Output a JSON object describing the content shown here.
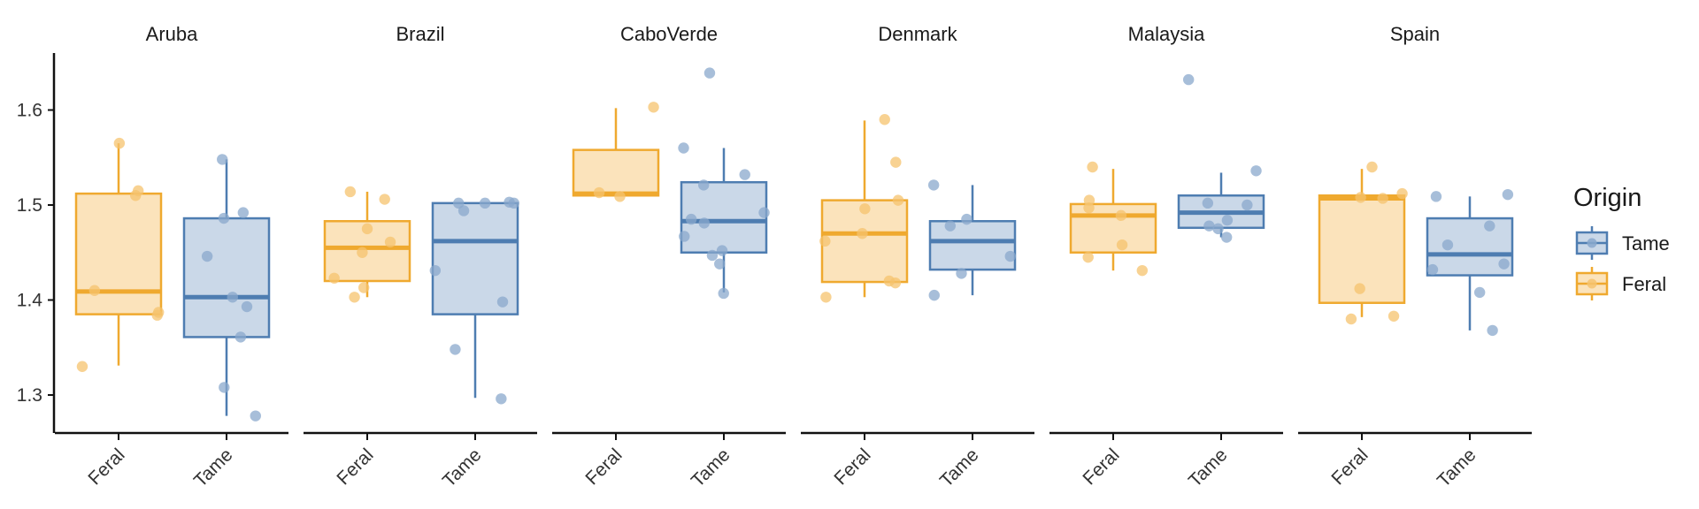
{
  "chart_data": {
    "type": "boxplot",
    "facets": [
      "Aruba",
      "Brazil",
      "CaboVerde",
      "Denmark",
      "Malaysia",
      "Spain"
    ],
    "categories": [
      "Feral",
      "Tame"
    ],
    "yticks": [
      1.3,
      1.4,
      1.5,
      1.6
    ],
    "ylim": [
      1.26,
      1.66
    ],
    "legend": {
      "title": "Origin",
      "position": "right",
      "entries": [
        {
          "label": "Tame",
          "key": "Tame"
        },
        {
          "label": "Feral",
          "key": "Feral"
        }
      ]
    },
    "colors": {
      "Feral": {
        "line": "#EFA92F",
        "fill": "#FBE3BB",
        "point": "#F6C36E"
      },
      "Tame": {
        "line": "#4E7DB1",
        "fill": "#CAD8E8",
        "point": "#8AA8CC"
      }
    },
    "panels": [
      {
        "facet": "Aruba",
        "boxes": [
          {
            "group": "Feral",
            "q1": 1.385,
            "median": 1.409,
            "q3": 1.512,
            "whisker_low": 1.331,
            "whisker_high": 1.565,
            "points": [
              1.565,
              1.51,
              1.515,
              1.41,
              1.387,
              1.384,
              1.33
            ]
          },
          {
            "group": "Tame",
            "q1": 1.361,
            "median": 1.403,
            "q3": 1.486,
            "whisker_low": 1.278,
            "whisker_high": 1.548,
            "points": [
              1.548,
              1.492,
              1.486,
              1.446,
              1.403,
              1.393,
              1.361,
              1.308,
              1.278
            ]
          }
        ]
      },
      {
        "facet": "Brazil",
        "boxes": [
          {
            "group": "Feral",
            "q1": 1.42,
            "median": 1.455,
            "q3": 1.483,
            "whisker_low": 1.403,
            "whisker_high": 1.514,
            "points": [
              1.514,
              1.506,
              1.475,
              1.461,
              1.45,
              1.423,
              1.413,
              1.403
            ]
          },
          {
            "group": "Tame",
            "q1": 1.385,
            "median": 1.462,
            "q3": 1.502,
            "whisker_low": 1.297,
            "whisker_high": 1.502,
            "points": [
              1.502,
              1.502,
              1.503,
              1.502,
              1.494,
              1.431,
              1.398,
              1.348,
              1.296
            ]
          }
        ]
      },
      {
        "facet": "CaboVerde",
        "boxes": [
          {
            "group": "Feral",
            "q1": 1.51,
            "median": 1.512,
            "q3": 1.558,
            "whisker_low": 1.51,
            "whisker_high": 1.602,
            "points": [
              1.603,
              1.513,
              1.509
            ]
          },
          {
            "group": "Tame",
            "q1": 1.45,
            "median": 1.483,
            "q3": 1.524,
            "whisker_low": 1.408,
            "whisker_high": 1.56,
            "points": [
              1.639,
              1.56,
              1.532,
              1.521,
              1.492,
              1.485,
              1.481,
              1.467,
              1.452,
              1.447,
              1.438,
              1.407
            ]
          }
        ]
      },
      {
        "facet": "Denmark",
        "boxes": [
          {
            "group": "Feral",
            "q1": 1.419,
            "median": 1.47,
            "q3": 1.505,
            "whisker_low": 1.403,
            "whisker_high": 1.589,
            "points": [
              1.59,
              1.545,
              1.505,
              1.496,
              1.47,
              1.462,
              1.42,
              1.418,
              1.403
            ]
          },
          {
            "group": "Tame",
            "q1": 1.432,
            "median": 1.462,
            "q3": 1.483,
            "whisker_low": 1.405,
            "whisker_high": 1.521,
            "points": [
              1.521,
              1.485,
              1.478,
              1.446,
              1.428,
              1.405
            ]
          }
        ]
      },
      {
        "facet": "Malaysia",
        "boxes": [
          {
            "group": "Feral",
            "q1": 1.45,
            "median": 1.489,
            "q3": 1.501,
            "whisker_low": 1.431,
            "whisker_high": 1.538,
            "points": [
              1.54,
              1.505,
              1.497,
              1.489,
              1.458,
              1.445,
              1.431
            ]
          },
          {
            "group": "Tame",
            "q1": 1.476,
            "median": 1.492,
            "q3": 1.51,
            "whisker_low": 1.466,
            "whisker_high": 1.534,
            "points": [
              1.632,
              1.536,
              1.502,
              1.5,
              1.484,
              1.478,
              1.475,
              1.466
            ]
          }
        ]
      },
      {
        "facet": "Spain",
        "boxes": [
          {
            "group": "Feral",
            "q1": 1.397,
            "median": 1.507,
            "q3": 1.51,
            "whisker_low": 1.382,
            "whisker_high": 1.538,
            "points": [
              1.54,
              1.512,
              1.508,
              1.507,
              1.412,
              1.383,
              1.38
            ]
          },
          {
            "group": "Tame",
            "q1": 1.426,
            "median": 1.448,
            "q3": 1.486,
            "whisker_low": 1.368,
            "whisker_high": 1.509,
            "points": [
              1.511,
              1.509,
              1.478,
              1.458,
              1.438,
              1.432,
              1.408,
              1.368
            ]
          }
        ]
      }
    ]
  }
}
